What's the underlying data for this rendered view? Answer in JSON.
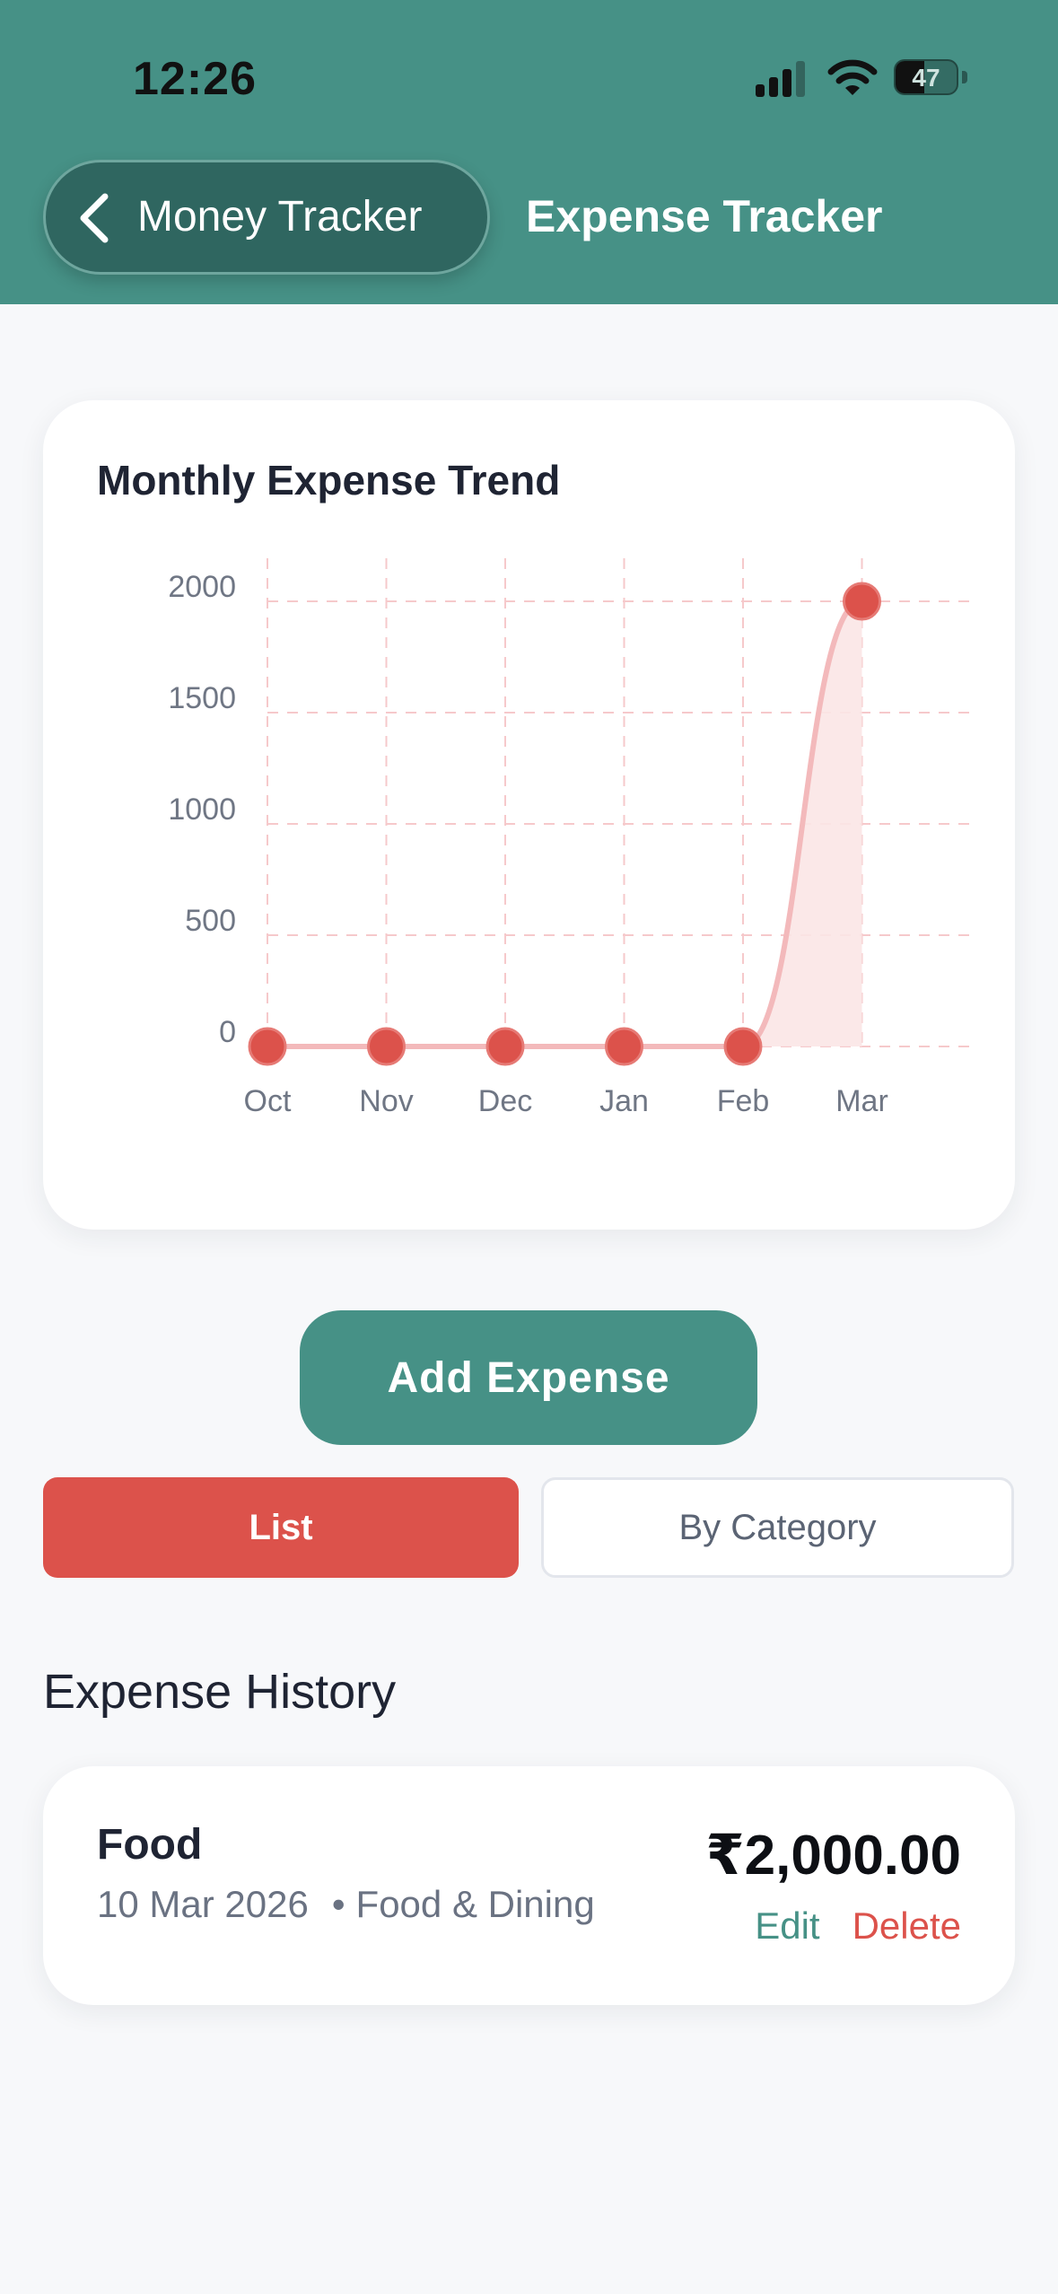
{
  "status_bar": {
    "time": "12:26",
    "battery_level": "47",
    "battery_fraction": 0.47
  },
  "header": {
    "back_label": "Money Tracker",
    "title": "Expense Tracker"
  },
  "chart_card": {
    "title": "Monthly Expense Trend"
  },
  "chart_data": {
    "type": "area",
    "categories": [
      "Oct",
      "Nov",
      "Dec",
      "Jan",
      "Feb",
      "Mar"
    ],
    "values": [
      0,
      0,
      0,
      0,
      0,
      2000
    ],
    "y_ticks": [
      0,
      500,
      1000,
      1500,
      2000
    ],
    "ylim": [
      0,
      2000
    ],
    "grid": true,
    "color": "#dc524b",
    "fill_color": "#fbe6e6"
  },
  "actions": {
    "add_expense_label": "Add Expense"
  },
  "view_toggle": {
    "list_label": "List",
    "category_label": "By Category",
    "active": "List"
  },
  "history": {
    "title": "Expense History",
    "items": [
      {
        "name": "Food",
        "date": "10 Mar 2026",
        "category": "Food & Dining",
        "amount": "₹2,000.00",
        "edit_label": "Edit",
        "delete_label": "Delete"
      }
    ]
  },
  "colors": {
    "primary": "#469186",
    "danger": "#dc524b",
    "background": "#f7f8fa"
  },
  "icons": {
    "back": "chevron-left-icon",
    "signal": "cellular-signal-icon",
    "wifi": "wifi-icon",
    "battery": "battery-icon"
  }
}
